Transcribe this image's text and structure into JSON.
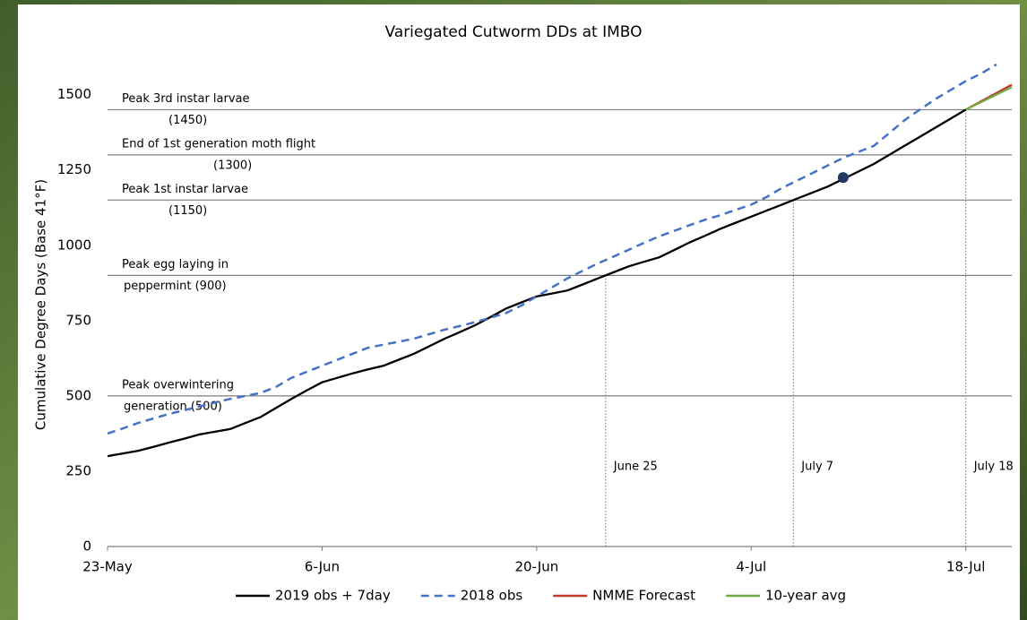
{
  "chart_data": {
    "type": "line",
    "title": "Variegated Cutworm DDs at IMBO",
    "y_label": "Cumulative Degree Days (Base 41°F)",
    "categories": [
      "23-May",
      null,
      null,
      null,
      null,
      null,
      null,
      null,
      null,
      null,
      null,
      null,
      null,
      null,
      "6-Jun",
      null,
      null,
      null,
      null,
      null,
      null,
      null,
      null,
      null,
      null,
      null,
      null,
      null,
      "20-Jun",
      null,
      null,
      null,
      null,
      null,
      null,
      null,
      null,
      null,
      null,
      null,
      null,
      null,
      "4-Jul",
      null,
      null,
      null,
      null,
      null,
      null,
      null,
      null,
      null,
      null,
      null,
      null,
      null,
      "18-Jul",
      null,
      null,
      null
    ],
    "ylim": [
      0,
      1600
    ],
    "yticks": [
      0,
      250,
      500,
      750,
      1000,
      1250,
      1500
    ],
    "grid": false,
    "series": [
      {
        "name": "2019 obs + 7day",
        "color": "#000000",
        "dash": false,
        "values": [
          300,
          309,
          318,
          331,
          345,
          358,
          372,
          381,
          390,
          410,
          430,
          460,
          490,
          518,
          545,
          560,
          575,
          588,
          600,
          620,
          640,
          665,
          690,
          712,
          735,
          762,
          790,
          810,
          830,
          840,
          850,
          870,
          890,
          910,
          930,
          945,
          960,
          985,
          1010,
          1032,
          1055,
          1075,
          1095,
          1115,
          1135,
          1155,
          1175,
          1195,
          1220,
          1245,
          1270,
          1300,
          1330,
          1360,
          1390,
          1420,
          1450,
          null,
          null,
          null
        ]
      },
      {
        "name": "2018 obs",
        "color": "#4472c4",
        "dash": true,
        "values": [
          375,
          392,
          410,
          425,
          440,
          452,
          465,
          478,
          490,
          500,
          510,
          530,
          560,
          580,
          600,
          620,
          640,
          660,
          670,
          680,
          690,
          705,
          720,
          732,
          745,
          760,
          775,
          800,
          830,
          860,
          890,
          915,
          940,
          962,
          985,
          1008,
          1030,
          1048,
          1067,
          1085,
          1100,
          1118,
          1135,
          1160,
          1190,
          1215,
          1240,
          1265,
          1290,
          1310,
          1330,
          1372,
          1415,
          1450,
          1485,
          1515,
          1545,
          1570,
          1600,
          null
        ]
      },
      {
        "name": "NMME Forecast",
        "color": "#c0392b",
        "dash": false,
        "values": [
          null,
          null,
          null,
          null,
          null,
          null,
          null,
          null,
          null,
          null,
          null,
          null,
          null,
          null,
          null,
          null,
          null,
          null,
          null,
          null,
          null,
          null,
          null,
          null,
          null,
          null,
          null,
          null,
          null,
          null,
          null,
          null,
          null,
          null,
          null,
          null,
          null,
          null,
          null,
          null,
          null,
          null,
          null,
          null,
          null,
          null,
          null,
          null,
          null,
          null,
          null,
          null,
          null,
          null,
          null,
          null,
          1450,
          1478,
          1505,
          1533
        ]
      },
      {
        "name": "10-year avg",
        "color": "#70ad47",
        "dash": false,
        "values": [
          null,
          null,
          null,
          null,
          null,
          null,
          null,
          null,
          null,
          null,
          null,
          null,
          null,
          null,
          null,
          null,
          null,
          null,
          null,
          null,
          null,
          null,
          null,
          null,
          null,
          null,
          null,
          null,
          null,
          null,
          null,
          null,
          null,
          null,
          null,
          null,
          null,
          null,
          null,
          null,
          null,
          null,
          null,
          null,
          null,
          null,
          null,
          null,
          null,
          null,
          null,
          null,
          null,
          null,
          null,
          null,
          1450,
          1475,
          1500,
          1525
        ]
      },
      {
        "color": "#203864",
        "marker": true,
        "values": [
          null,
          null,
          null,
          null,
          null,
          null,
          null,
          null,
          null,
          null,
          null,
          null,
          null,
          null,
          null,
          null,
          null,
          null,
          null,
          null,
          null,
          null,
          null,
          null,
          null,
          null,
          null,
          null,
          null,
          null,
          null,
          null,
          null,
          null,
          null,
          null,
          null,
          null,
          null,
          null,
          null,
          null,
          null,
          null,
          null,
          null,
          null,
          null,
          1225,
          null,
          null,
          null,
          null,
          null,
          null,
          null,
          null,
          null,
          null,
          null
        ]
      }
    ],
    "reference_lines": [
      {
        "value": 1450,
        "text": [
          "Peak 3rd instar larvae",
          "(1450)"
        ],
        "date_label": "July 18"
      },
      {
        "value": 1300,
        "text": [
          "End of 1st generation moth flight",
          "(1300)"
        ]
      },
      {
        "value": 1150,
        "text": [
          "Peak 1st instar larvae",
          "(1150)"
        ],
        "date_label": "July 7"
      },
      {
        "value": 900,
        "text": [
          "Peak egg laying in",
          "peppermint (900)"
        ],
        "date_label": "June 25"
      },
      {
        "value": 500,
        "text": [
          "Peak overwintering",
          "generation (500)"
        ]
      }
    ]
  }
}
